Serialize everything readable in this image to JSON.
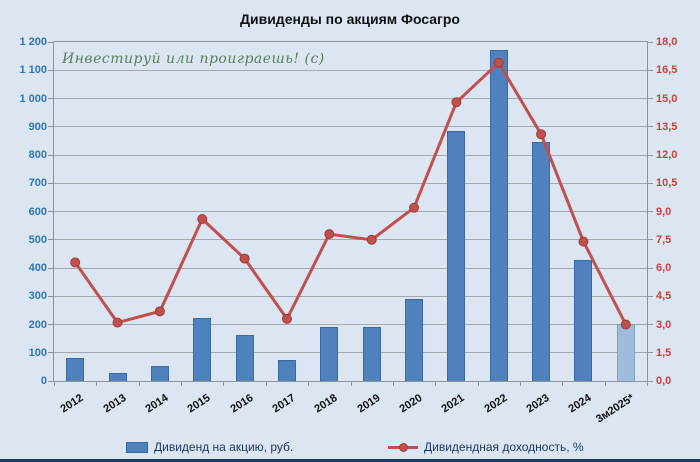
{
  "watermark": "Инвестируй или проиграешь! (с)",
  "colors": {
    "background": "#dce6f2",
    "bar_fill": "#4f81bd",
    "bar_border": "#3b69a5",
    "bar_last_fill": "#9fbcdc",
    "line": "#c0504d",
    "left_axis_text": "#2e75b6",
    "right_axis_text": "#c8413c",
    "watermark_text": "#55815a",
    "bottom_rule": "#1b3a66"
  },
  "chart_data": {
    "type": "combo-bar-line",
    "title": "Дивиденды по акциям Фосагро",
    "categories": [
      "2012",
      "2013",
      "2014",
      "2015",
      "2016",
      "2017",
      "2018",
      "2019",
      "2020",
      "2021",
      "2022",
      "2023",
      "2024",
      "3м2025*"
    ],
    "series": [
      {
        "name": "Дивиденд на акцию, руб.",
        "type": "bar",
        "axis": "left",
        "values": [
          80,
          30,
          53,
          222,
          162,
          73,
          192,
          192,
          290,
          884,
          1173,
          847,
          427,
          201
        ]
      },
      {
        "name": "Дивидендная доходность, %",
        "type": "line",
        "axis": "right",
        "values": [
          6.3,
          3.1,
          3.7,
          8.6,
          6.5,
          3.3,
          7.8,
          7.5,
          9.2,
          14.8,
          16.9,
          13.1,
          7.4,
          3.0
        ]
      }
    ],
    "y_left": {
      "min": 0,
      "max": 1200,
      "step": 100,
      "tick_labels": [
        "0",
        "100",
        "200",
        "300",
        "400",
        "500",
        "600",
        "700",
        "800",
        "900",
        "1 000",
        "1 100",
        "1 200"
      ]
    },
    "y_right": {
      "min": 0,
      "max": 18,
      "step": 1.5,
      "tick_labels": [
        "0,0",
        "1,5",
        "3,0",
        "4,5",
        "6,0",
        "7,5",
        "9,0",
        "10,5",
        "12,0",
        "13,5",
        "15,0",
        "16,5",
        "18,0"
      ]
    },
    "grid": true,
    "legend_position": "bottom",
    "highlight_last_bar": true
  }
}
